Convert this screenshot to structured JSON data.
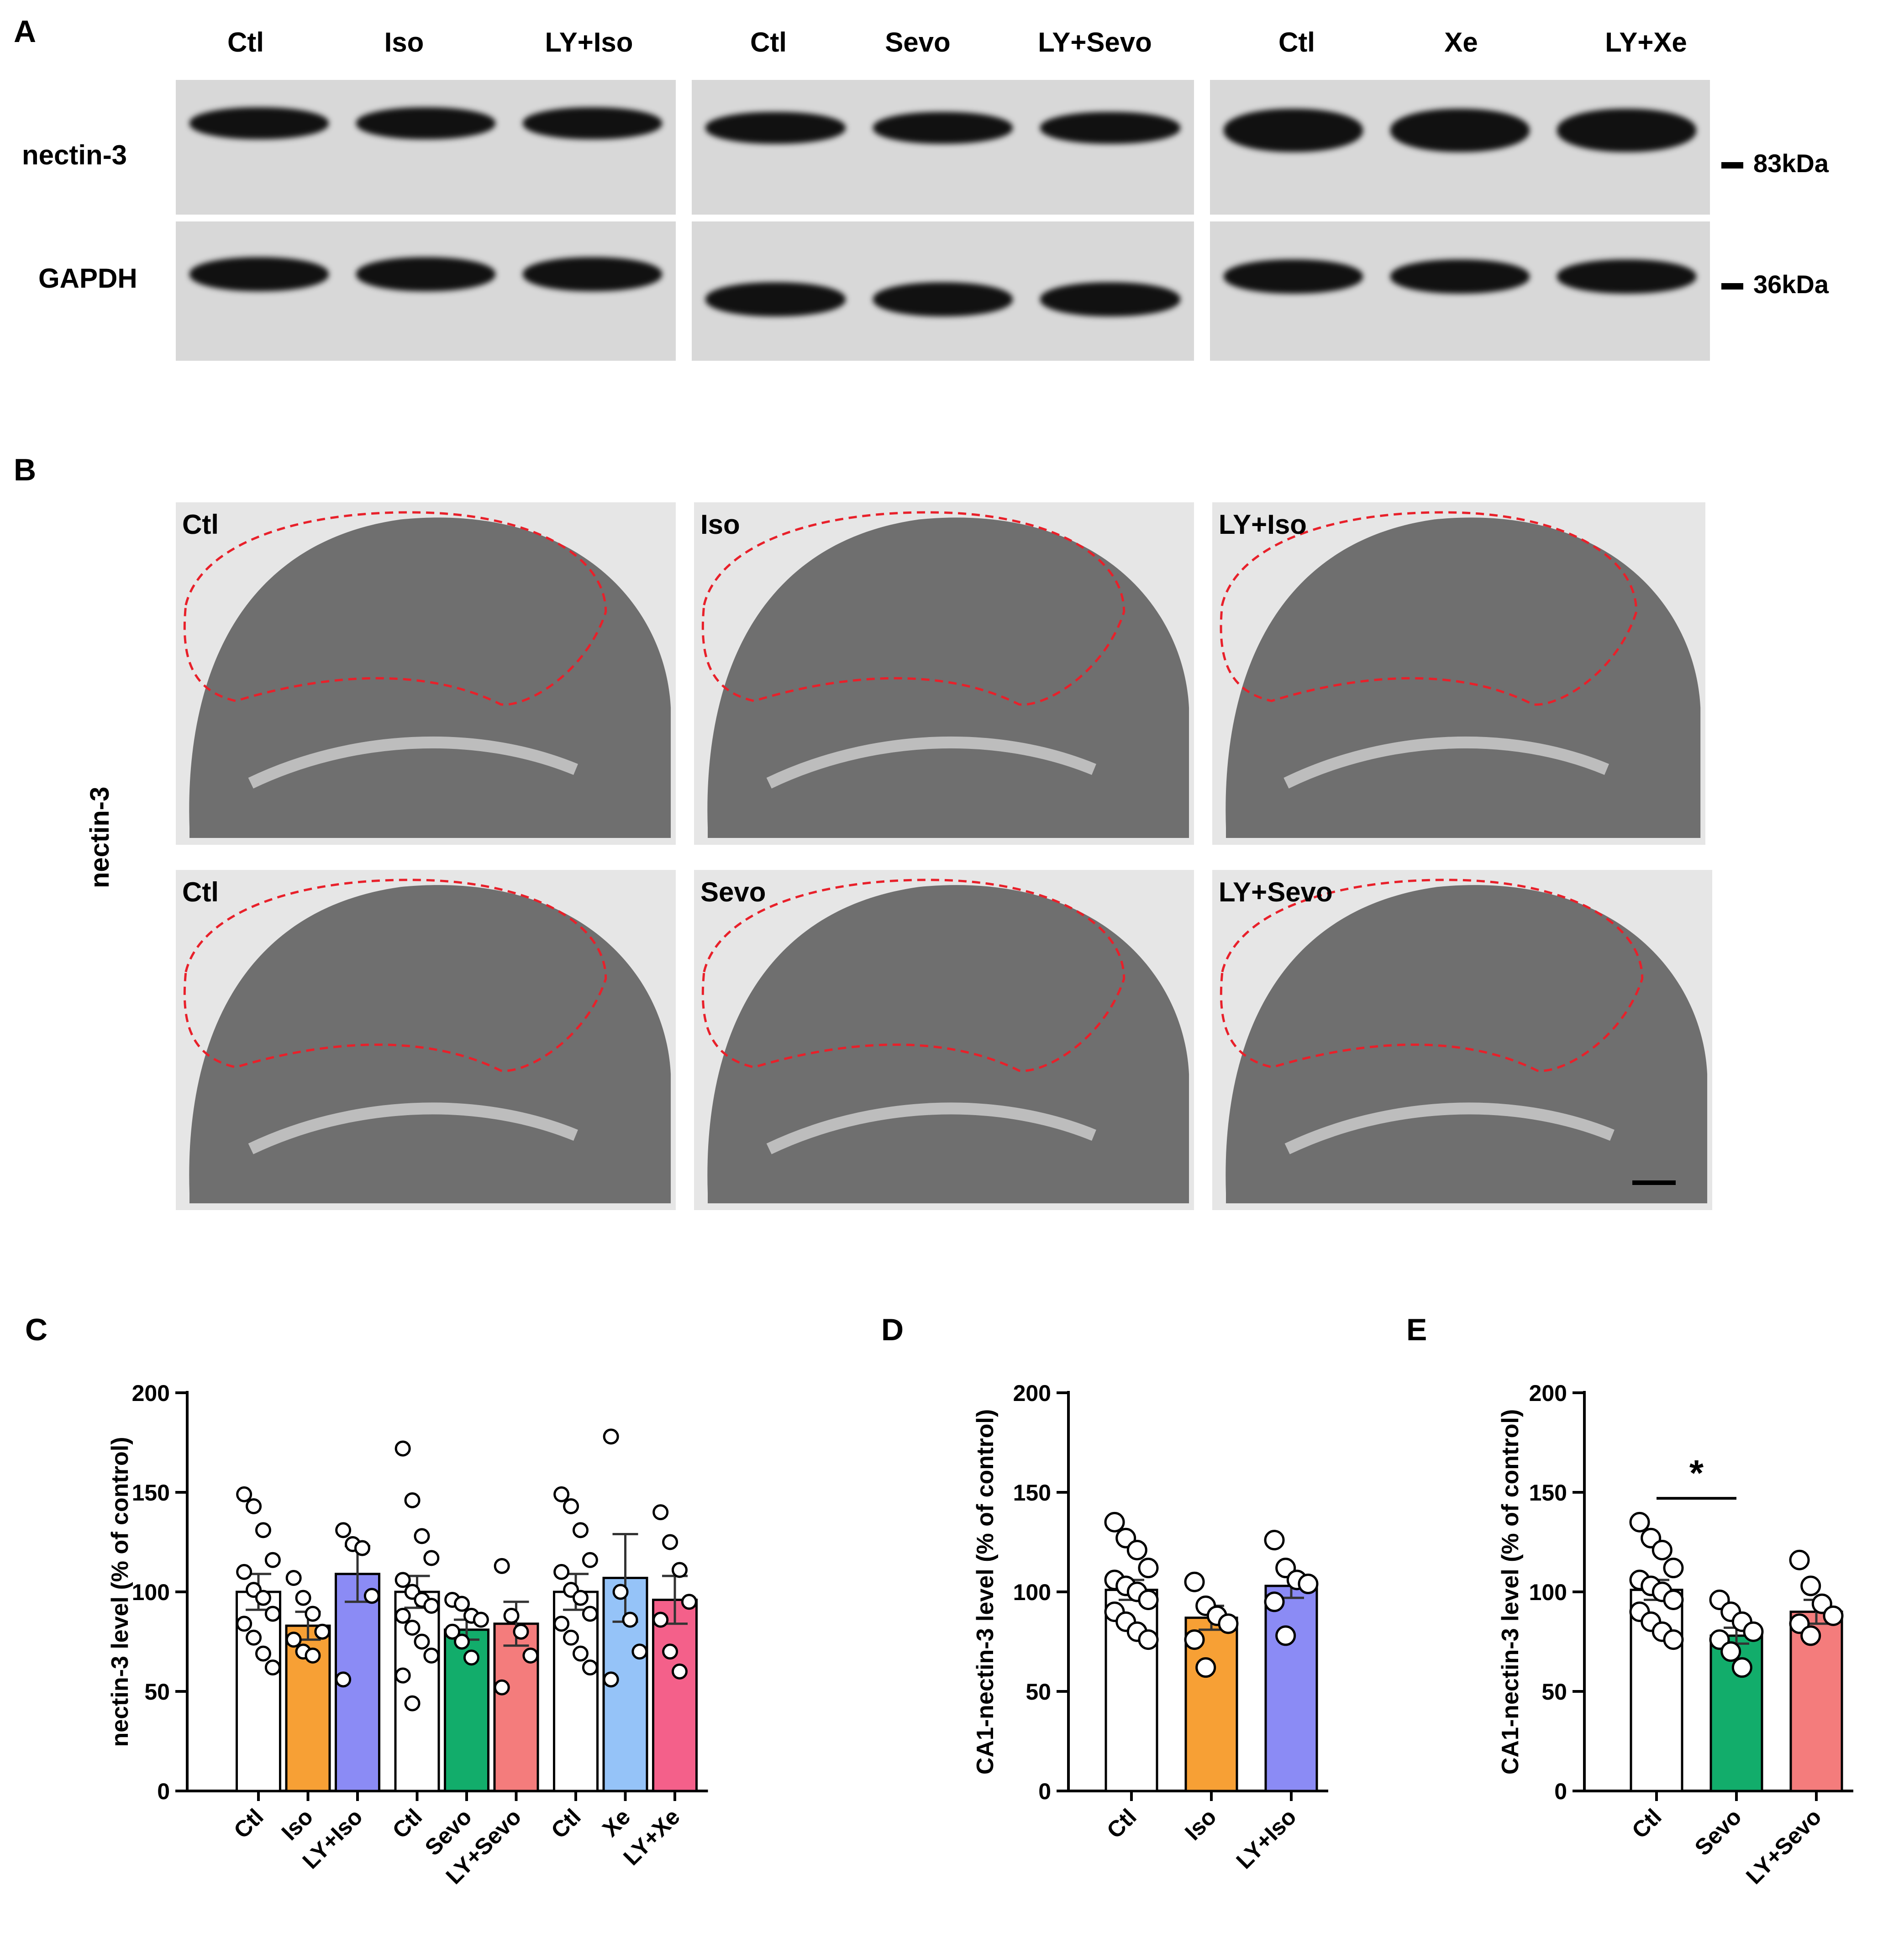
{
  "panelA": {
    "letter": "A",
    "lanes": [
      "Ctl",
      "Iso",
      "LY+Iso",
      "Ctl",
      "Sevo",
      "LY+Sevo",
      "Ctl",
      "Xe",
      "LY+Xe"
    ],
    "rows": [
      "nectin-3",
      "GAPDH"
    ],
    "markers": [
      "83kDa",
      "36kDa"
    ]
  },
  "panelB": {
    "letter": "B",
    "side_label": "nectin-3",
    "images": [
      "Ctl",
      "Iso",
      "LY+Iso",
      "Ctl",
      "Sevo",
      "LY+Sevo"
    ]
  },
  "chart_data": [
    {
      "panel": "C",
      "type": "bar",
      "ylabel": "nectin-3 level (% of control)",
      "ylim": [
        0,
        200
      ],
      "yticks": [
        0,
        50,
        100,
        150,
        200
      ],
      "categories": [
        "Ctl",
        "Iso",
        "LY+Iso",
        "Ctl",
        "Sevo",
        "LY+Sevo",
        "Ctl",
        "Xe",
        "LY+Xe"
      ],
      "values": [
        100,
        83,
        109,
        100,
        81,
        84,
        100,
        107,
        96
      ],
      "sem": [
        9,
        7,
        14,
        8,
        5,
        11,
        9,
        22,
        12
      ],
      "colors": [
        "#ffffff",
        "#f7a035",
        "#8b8bf5",
        "#ffffff",
        "#12ad6b",
        "#f47c7c",
        "#ffffff",
        "#95c3f8",
        "#f4608a"
      ],
      "points": [
        [
          149,
          143,
          131,
          116,
          110,
          101,
          97,
          89,
          84,
          77,
          69,
          62
        ],
        [
          107,
          97,
          89,
          80,
          76,
          70,
          68
        ],
        [
          131,
          124,
          122,
          98,
          56
        ],
        [
          172,
          146,
          128,
          117,
          106,
          100,
          96,
          93,
          88,
          82,
          75,
          68,
          58,
          44
        ],
        [
          96,
          94,
          88,
          86,
          80,
          75,
          67
        ],
        [
          113,
          88,
          80,
          68,
          52
        ],
        [
          149,
          143,
          131,
          116,
          110,
          101,
          97,
          89,
          84,
          77,
          69,
          62
        ],
        [
          178,
          100,
          86,
          70,
          56
        ],
        [
          140,
          125,
          111,
          95,
          86,
          70,
          60
        ]
      ]
    },
    {
      "panel": "D",
      "type": "bar",
      "ylabel": "CA1-nectin-3 level (% of control)",
      "ylim": [
        0,
        200
      ],
      "yticks": [
        0,
        50,
        100,
        150,
        200
      ],
      "categories": [
        "Ctl",
        "Iso",
        "LY+Iso"
      ],
      "values": [
        101,
        87,
        103
      ],
      "sem": [
        5,
        6,
        6
      ],
      "colors": [
        "#ffffff",
        "#f7a035",
        "#8b8bf5"
      ],
      "points": [
        [
          135,
          127,
          121,
          112,
          106,
          103,
          100,
          96,
          90,
          85,
          80,
          76
        ],
        [
          105,
          93,
          88,
          84,
          76,
          62
        ],
        [
          126,
          112,
          106,
          104,
          95,
          78
        ]
      ]
    },
    {
      "panel": "E",
      "type": "bar",
      "ylabel": "CA1-nectin-3 level (% of control)",
      "ylim": [
        0,
        200
      ],
      "yticks": [
        0,
        50,
        100,
        150,
        200
      ],
      "categories": [
        "Ctl",
        "Sevo",
        "LY+Sevo"
      ],
      "values": [
        101,
        78,
        90
      ],
      "sem": [
        5,
        4,
        6
      ],
      "colors": [
        "#ffffff",
        "#12ad6b",
        "#f47c7c"
      ],
      "points": [
        [
          135,
          127,
          121,
          112,
          106,
          103,
          100,
          96,
          90,
          85,
          80,
          76
        ],
        [
          96,
          90,
          85,
          80,
          76,
          70,
          62
        ],
        [
          116,
          103,
          94,
          88,
          84,
          78
        ]
      ],
      "significance": {
        "label": "*",
        "between": [
          0,
          1
        ]
      }
    }
  ]
}
